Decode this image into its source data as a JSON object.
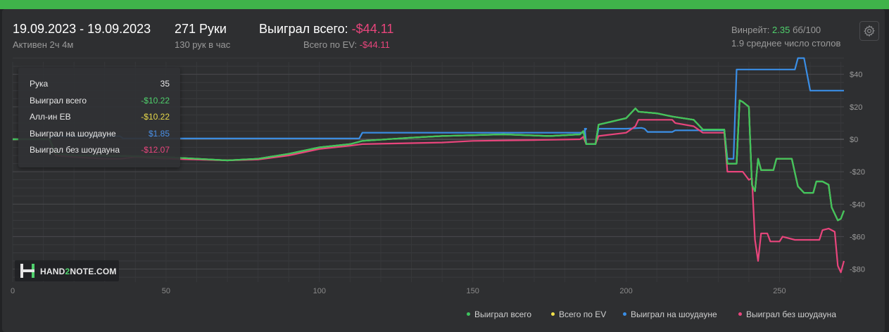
{
  "header": {
    "date_range": "19.09.2023 - 19.09.2023",
    "active_time": "Активен 2ч 4м",
    "hands_count": "271 Руки",
    "hands_per_hour": "130 рук в час",
    "won_total_label": "Выиграл всего:",
    "won_total_value": "-$44.11",
    "ev_total_label": "Всего по EV:",
    "ev_total_value": "-$44.11",
    "winrate_label": "Винрейт:",
    "winrate_value": "2.35",
    "winrate_unit": "бб/100",
    "avg_tables": "1.9 среднее число столов"
  },
  "settings_icon": "gear-icon",
  "tooltip": {
    "rows": [
      {
        "label": "Рука",
        "value": "35",
        "color": "#e8e8e8"
      },
      {
        "label": "Выиграл всего",
        "value": "-$10.22",
        "color": "#4fd06c"
      },
      {
        "label": "Алл-ин ЕВ",
        "value": "-$10.22",
        "color": "#e6d84a"
      },
      {
        "label": "Выиграл на шоудауне",
        "value": "$1.85",
        "color": "#4a90e8"
      },
      {
        "label": "Выиграл без шоудауна",
        "value": "-$12.07",
        "color": "#e8457c"
      }
    ]
  },
  "logo": {
    "part1": "HAND",
    "part2": "2",
    "part3": "NOTE.COM"
  },
  "legend": [
    {
      "name": "Выиграл всего",
      "color": "#3ec45e"
    },
    {
      "name": "Всего по EV",
      "color": "#f2e24a"
    },
    {
      "name": "Выиграл на шоудауне",
      "color": "#3a8ee6"
    },
    {
      "name": "Выиграл без шоудауна",
      "color": "#e8457c"
    }
  ],
  "chart_data": {
    "type": "line",
    "xlim": [
      0,
      271
    ],
    "ylim": [
      -88,
      52
    ],
    "x_ticks": [
      0,
      50,
      100,
      150,
      200,
      250
    ],
    "y_ticks": [
      40,
      20,
      0,
      -20,
      -40,
      -60,
      -80
    ],
    "y_tick_labels": [
      "$40",
      "$20",
      "$0",
      "-$20",
      "-$40",
      "-$60",
      "-$80"
    ],
    "grid": true,
    "legend_position": "bottom-right",
    "series": [
      {
        "name": "Выиграл на шоудауне",
        "color": "#3a8ee6",
        "points": [
          [
            0,
            0
          ],
          [
            12,
            0
          ],
          [
            13,
            1.85
          ],
          [
            35,
            1.85
          ],
          [
            36,
            0.5
          ],
          [
            50,
            0.5
          ],
          [
            113,
            0.5
          ],
          [
            114,
            4
          ],
          [
            186,
            4
          ],
          [
            187,
            6.5
          ],
          [
            186.5,
            6.5
          ],
          [
            187,
            -3
          ],
          [
            190,
            -3
          ],
          [
            191,
            6.5
          ],
          [
            200,
            6.5
          ],
          [
            205,
            7
          ],
          [
            206,
            6.5
          ],
          [
            207,
            4.5
          ],
          [
            215,
            4.5
          ],
          [
            216,
            5.5
          ],
          [
            225,
            5.5
          ],
          [
            232,
            5.5
          ],
          [
            233,
            -12
          ],
          [
            235,
            -12
          ],
          [
            236,
            43
          ],
          [
            255,
            43
          ],
          [
            256,
            50
          ],
          [
            258,
            50
          ],
          [
            260,
            30
          ],
          [
            271,
            30
          ]
        ]
      },
      {
        "name": "Выиграл без шоудауна",
        "color": "#e8457c",
        "points": [
          [
            0,
            0
          ],
          [
            12,
            0
          ],
          [
            14,
            -10
          ],
          [
            20,
            -11
          ],
          [
            30,
            -12
          ],
          [
            35,
            -12.07
          ],
          [
            40,
            -11
          ],
          [
            50,
            -12
          ],
          [
            60,
            -12.5
          ],
          [
            70,
            -13
          ],
          [
            80,
            -12.5
          ],
          [
            90,
            -10
          ],
          [
            100,
            -6
          ],
          [
            110,
            -4
          ],
          [
            114,
            -3
          ],
          [
            140,
            -2
          ],
          [
            150,
            -1
          ],
          [
            170,
            -0.5
          ],
          [
            185,
            0
          ],
          [
            186,
            1.5
          ],
          [
            187,
            -3
          ],
          [
            190,
            -3
          ],
          [
            191,
            2
          ],
          [
            200,
            4
          ],
          [
            203,
            8
          ],
          [
            204,
            12
          ],
          [
            215,
            12
          ],
          [
            216,
            10
          ],
          [
            222,
            8
          ],
          [
            225,
            4
          ],
          [
            232,
            4
          ],
          [
            233,
            -20
          ],
          [
            238,
            -20
          ],
          [
            240,
            -25
          ],
          [
            241,
            -24
          ],
          [
            242,
            -62
          ],
          [
            243,
            -75
          ],
          [
            244,
            -58
          ],
          [
            246,
            -58
          ],
          [
            247,
            -63
          ],
          [
            250,
            -63
          ],
          [
            251,
            -60
          ],
          [
            255,
            -62
          ],
          [
            263,
            -62
          ],
          [
            264,
            -56
          ],
          [
            266,
            -55
          ],
          [
            268,
            -57
          ],
          [
            269,
            -78
          ],
          [
            270,
            -82
          ],
          [
            271,
            -75
          ]
        ]
      },
      {
        "name": "Всего по EV",
        "color": "#f2e24a",
        "points": [
          [
            0,
            0
          ],
          [
            12,
            0
          ],
          [
            14,
            -9
          ],
          [
            20,
            -10
          ],
          [
            35,
            -10.22
          ],
          [
            50,
            -11
          ],
          [
            60,
            -12
          ],
          [
            70,
            -13
          ],
          [
            80,
            -12
          ],
          [
            90,
            -9
          ],
          [
            100,
            -5
          ],
          [
            110,
            -3
          ],
          [
            114,
            -1
          ],
          [
            130,
            1
          ],
          [
            140,
            2
          ],
          [
            160,
            3
          ],
          [
            175,
            2
          ],
          [
            185,
            3
          ],
          [
            186,
            5
          ],
          [
            187,
            -3
          ],
          [
            190,
            -3
          ],
          [
            191,
            9
          ],
          [
            200,
            13
          ],
          [
            203,
            19
          ],
          [
            204,
            17
          ],
          [
            210,
            16
          ],
          [
            215,
            14
          ],
          [
            222,
            12
          ],
          [
            225,
            6
          ],
          [
            232,
            6
          ],
          [
            233,
            -15
          ],
          [
            236,
            -15
          ],
          [
            237,
            24
          ],
          [
            238,
            23
          ],
          [
            240,
            20
          ],
          [
            241,
            -28
          ],
          [
            242,
            -32
          ],
          [
            243,
            -12
          ],
          [
            244,
            -19
          ],
          [
            248,
            -19
          ],
          [
            249,
            -12
          ],
          [
            254,
            -12
          ],
          [
            256,
            -29
          ],
          [
            258,
            -33
          ],
          [
            261,
            -33
          ],
          [
            262,
            -26
          ],
          [
            264,
            -26
          ],
          [
            266,
            -28
          ],
          [
            267,
            -42
          ],
          [
            269,
            -50
          ],
          [
            270,
            -49
          ],
          [
            271,
            -44
          ]
        ]
      },
      {
        "name": "Выиграл всего",
        "color": "#3ec45e",
        "points": [
          [
            0,
            0
          ],
          [
            12,
            0
          ],
          [
            14,
            -9
          ],
          [
            20,
            -10
          ],
          [
            35,
            -10.22
          ],
          [
            50,
            -11
          ],
          [
            60,
            -12
          ],
          [
            70,
            -13
          ],
          [
            80,
            -12
          ],
          [
            90,
            -9
          ],
          [
            100,
            -5
          ],
          [
            110,
            -3
          ],
          [
            114,
            -1
          ],
          [
            130,
            1
          ],
          [
            140,
            2
          ],
          [
            160,
            3
          ],
          [
            175,
            2
          ],
          [
            185,
            3
          ],
          [
            186,
            5
          ],
          [
            187,
            -3
          ],
          [
            190,
            -3
          ],
          [
            191,
            9
          ],
          [
            200,
            13
          ],
          [
            203,
            19
          ],
          [
            204,
            17
          ],
          [
            210,
            16
          ],
          [
            215,
            14
          ],
          [
            222,
            12
          ],
          [
            225,
            6
          ],
          [
            232,
            6
          ],
          [
            233,
            -15
          ],
          [
            236,
            -15
          ],
          [
            237,
            24
          ],
          [
            238,
            23
          ],
          [
            240,
            20
          ],
          [
            241,
            -28
          ],
          [
            242,
            -32
          ],
          [
            243,
            -12
          ],
          [
            244,
            -19
          ],
          [
            248,
            -19
          ],
          [
            249,
            -12
          ],
          [
            254,
            -12
          ],
          [
            256,
            -29
          ],
          [
            258,
            -33
          ],
          [
            261,
            -33
          ],
          [
            262,
            -26
          ],
          [
            264,
            -26
          ],
          [
            266,
            -28
          ],
          [
            267,
            -42
          ],
          [
            269,
            -50
          ],
          [
            270,
            -49
          ],
          [
            271,
            -44
          ]
        ]
      }
    ]
  }
}
